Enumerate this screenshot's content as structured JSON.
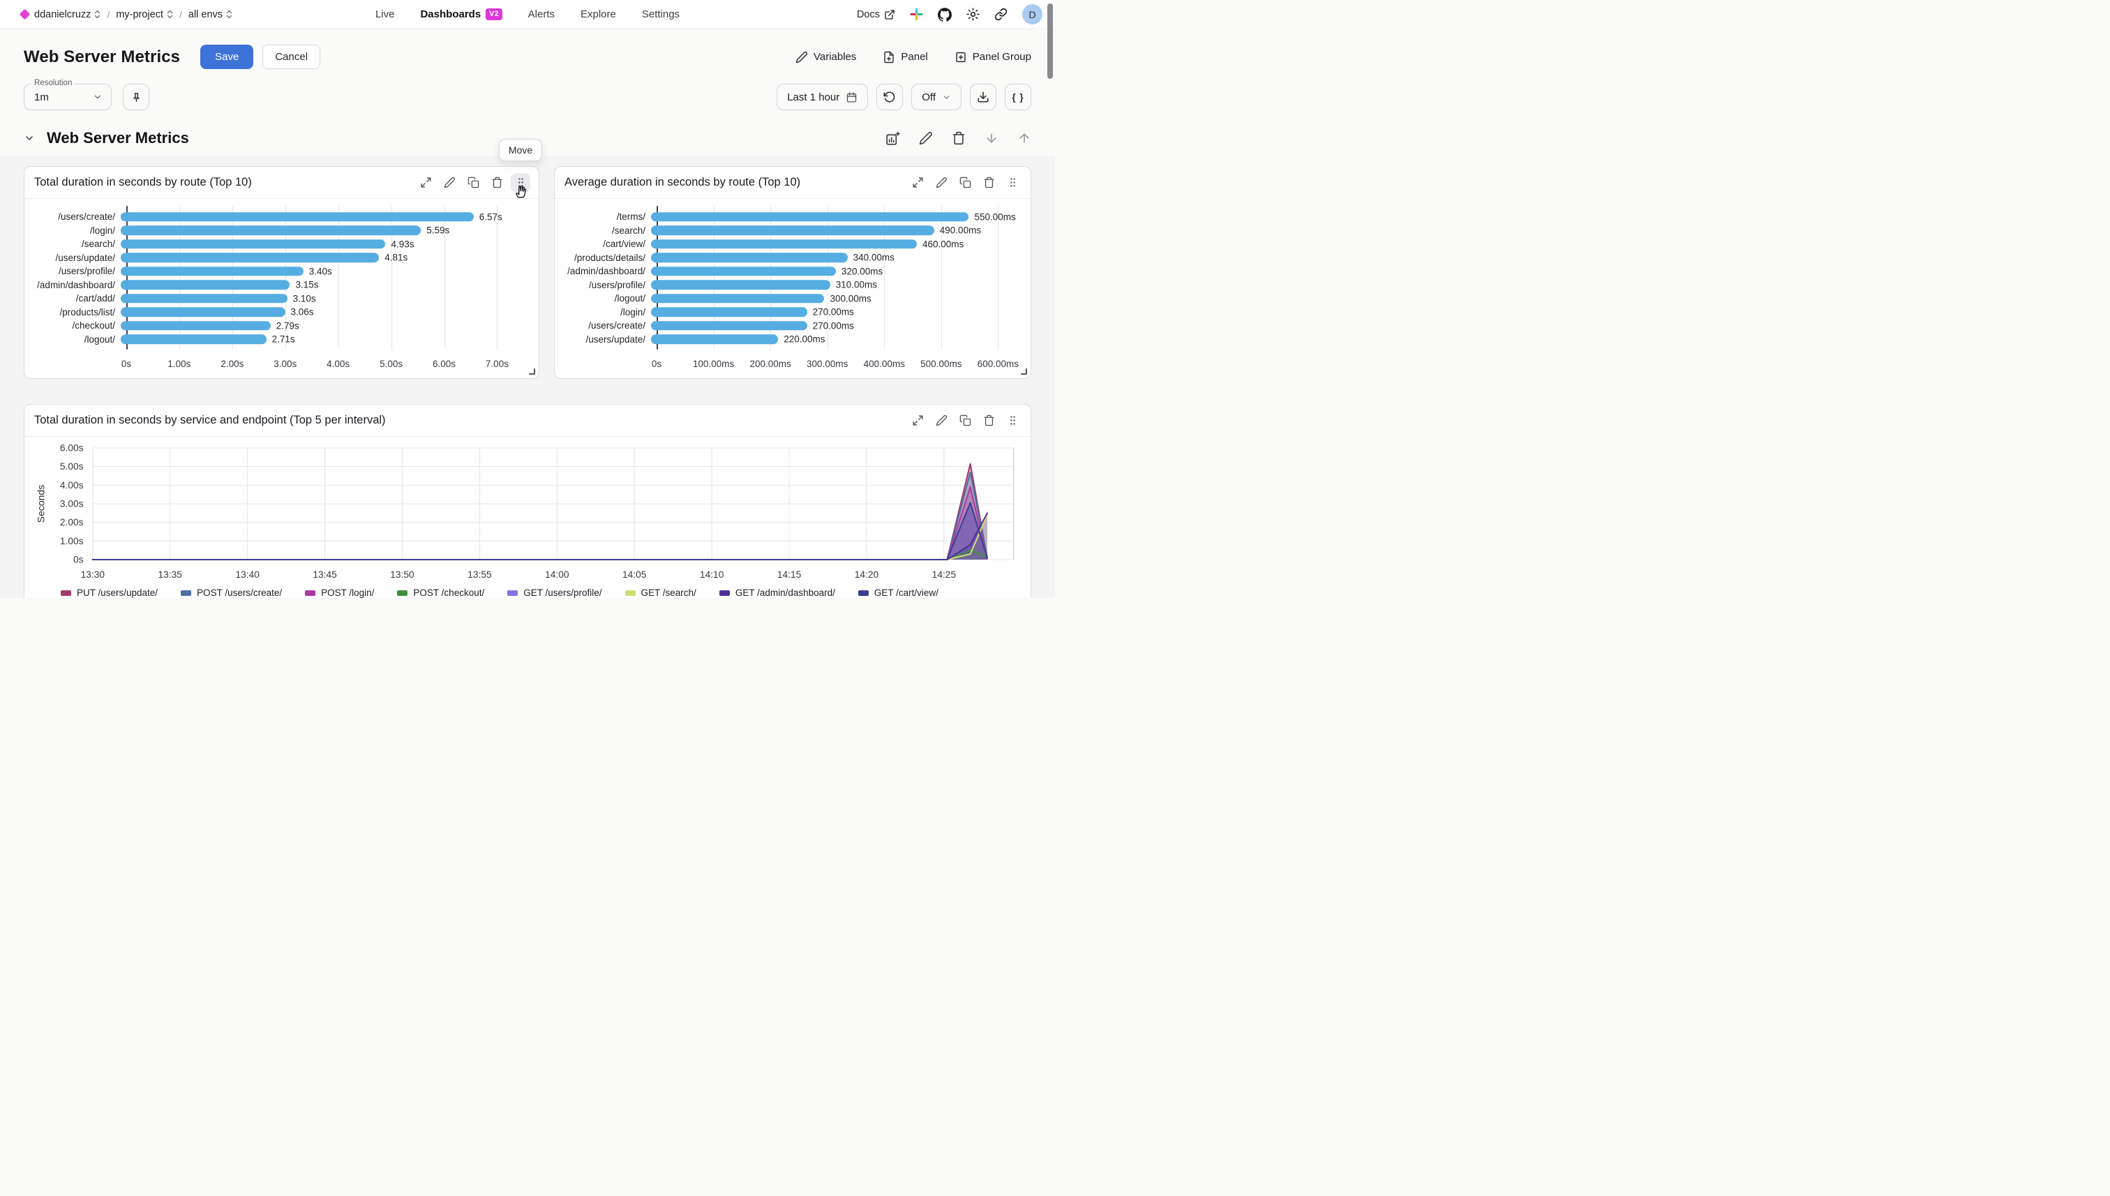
{
  "nav": {
    "breadcrumbs": [
      {
        "label": "ddanielcruzz"
      },
      {
        "label": "my-project"
      },
      {
        "label": "all envs"
      }
    ],
    "tabs": [
      {
        "label": "Live"
      },
      {
        "label": "Dashboards",
        "badge": "V2",
        "active": true
      },
      {
        "label": "Alerts"
      },
      {
        "label": "Explore"
      },
      {
        "label": "Settings"
      }
    ],
    "docs_label": "Docs",
    "avatar_initial": "D"
  },
  "header": {
    "title": "Web Server Metrics",
    "save_label": "Save",
    "cancel_label": "Cancel",
    "variables_label": "Variables",
    "panel_label": "Panel",
    "panel_group_label": "Panel Group"
  },
  "controls": {
    "resolution_label": "Resolution",
    "resolution_value": "1m",
    "time_range_label": "Last 1 hour",
    "auto_refresh_label": "Off",
    "braces_label": "{ }"
  },
  "section": {
    "title": "Web Server Metrics",
    "move_tooltip": "Move"
  },
  "colors": {
    "accent_blue": "#3D72D8",
    "bar_blue": "#55ADE2",
    "badge_magenta": "#DB36D8",
    "logo_magenta": "#E23FD3",
    "avatar_bg": "#A9CBF1"
  },
  "chart_data": [
    {
      "type": "bar",
      "orientation": "horizontal",
      "title": "Total duration in seconds by route (Top 10)",
      "bar_color": "#55ADE2",
      "categories": [
        "/users/create/",
        "/login/",
        "/search/",
        "/users/update/",
        "/users/profile/",
        "/admin/dashboard/",
        "/cart/add/",
        "/products/list/",
        "/checkout/",
        "/logout/"
      ],
      "values": [
        6.57,
        5.59,
        4.93,
        4.81,
        3.4,
        3.15,
        3.1,
        3.06,
        2.79,
        2.71
      ],
      "value_labels": [
        "6.57s",
        "5.59s",
        "4.93s",
        "4.81s",
        "3.40s",
        "3.15s",
        "3.10s",
        "3.06s",
        "2.79s",
        "2.71s"
      ],
      "x_max": 7.6,
      "x_ticks": [
        {
          "value": 0,
          "label": "0s"
        },
        {
          "value": 1,
          "label": "1.00s"
        },
        {
          "value": 2,
          "label": "2.00s"
        },
        {
          "value": 3,
          "label": "3.00s"
        },
        {
          "value": 4,
          "label": "4.00s"
        },
        {
          "value": 5,
          "label": "5.00s"
        },
        {
          "value": 6,
          "label": "6.00s"
        },
        {
          "value": 7,
          "label": "7.00s"
        }
      ]
    },
    {
      "type": "bar",
      "orientation": "horizontal",
      "title": "Average duration in seconds by route (Top 10)",
      "bar_color": "#55ADE2",
      "categories": [
        "/terms/",
        "/search/",
        "/cart/view/",
        "/products/details/",
        "/admin/dashboard/",
        "/users/profile/",
        "/logout/",
        "/login/",
        "/users/create/",
        "/users/update/"
      ],
      "values": [
        550,
        490,
        460,
        340,
        320,
        310,
        300,
        270,
        270,
        220
      ],
      "value_labels": [
        "550.00ms",
        "490.00ms",
        "460.00ms",
        "340.00ms",
        "320.00ms",
        "310.00ms",
        "300.00ms",
        "270.00ms",
        "270.00ms",
        "220.00ms"
      ],
      "x_max": 640,
      "x_ticks": [
        {
          "value": 0,
          "label": "0s"
        },
        {
          "value": 100,
          "label": "100.00ms"
        },
        {
          "value": 200,
          "label": "200.00ms"
        },
        {
          "value": 300,
          "label": "300.00ms"
        },
        {
          "value": 400,
          "label": "400.00ms"
        },
        {
          "value": 500,
          "label": "500.00ms"
        },
        {
          "value": 600,
          "label": "600.00ms"
        }
      ]
    },
    {
      "type": "area",
      "title": "Total duration in seconds by service and endpoint (Top 5 per interval)",
      "ylabel": "Seconds",
      "y_max": 6,
      "y_ticks": [
        {
          "value": 0,
          "label": "0s"
        },
        {
          "value": 1,
          "label": "1.00s"
        },
        {
          "value": 2,
          "label": "2.00s"
        },
        {
          "value": 3,
          "label": "3.00s"
        },
        {
          "value": 4,
          "label": "4.00s"
        },
        {
          "value": 5,
          "label": "5.00s"
        },
        {
          "value": 6,
          "label": "6.00s"
        }
      ],
      "x_domain_minutes": [
        0,
        59.5
      ],
      "x_ticks": [
        {
          "t": 0,
          "label": "13:30"
        },
        {
          "t": 5,
          "label": "13:35"
        },
        {
          "t": 10,
          "label": "13:40"
        },
        {
          "t": 15,
          "label": "13:45"
        },
        {
          "t": 20,
          "label": "13:50"
        },
        {
          "t": 25,
          "label": "13:55"
        },
        {
          "t": 30,
          "label": "14:00"
        },
        {
          "t": 35,
          "label": "14:05"
        },
        {
          "t": 40,
          "label": "14:10"
        },
        {
          "t": 45,
          "label": "14:15"
        },
        {
          "t": 50,
          "label": "14:20"
        },
        {
          "t": 55,
          "label": "14:25"
        }
      ],
      "series": [
        {
          "name": "PUT /users/update/",
          "color": "#A13A6D",
          "points": [
            [
              0,
              0
            ],
            [
              55.2,
              0
            ],
            [
              56.7,
              5.15
            ],
            [
              57.8,
              0.05
            ]
          ]
        },
        {
          "name": "POST /users/create/",
          "color": "#4E6FA3",
          "points": [
            [
              0,
              0
            ],
            [
              55.2,
              0
            ],
            [
              56.7,
              4.7
            ],
            [
              57.8,
              0.1
            ]
          ]
        },
        {
          "name": "POST /login/",
          "color": "#AA3AA0",
          "points": [
            [
              0,
              0
            ],
            [
              55.2,
              0
            ],
            [
              56.7,
              3.9
            ],
            [
              57.8,
              0.05
            ]
          ]
        },
        {
          "name": "POST /checkout/",
          "color": "#41903F",
          "points": [
            [
              0,
              0
            ],
            [
              55.2,
              0
            ],
            [
              56.7,
              0.5
            ],
            [
              57.8,
              0.15
            ]
          ]
        },
        {
          "name": "GET /users/profile/",
          "color": "#8673DE",
          "points": [
            [
              0,
              0
            ],
            [
              55.2,
              0
            ],
            [
              56.7,
              3.0
            ],
            [
              57.8,
              0.1
            ]
          ]
        },
        {
          "name": "GET /search/",
          "color": "#CEDF70",
          "points": [
            [
              0,
              0
            ],
            [
              55.2,
              0
            ],
            [
              56.7,
              0.3
            ],
            [
              57.8,
              2.4
            ]
          ]
        },
        {
          "name": "GET /admin/dashboard/",
          "color": "#4D2F9E",
          "points": [
            [
              0,
              0
            ],
            [
              55.2,
              0
            ],
            [
              56.7,
              0.8
            ],
            [
              57.8,
              2.5
            ]
          ]
        },
        {
          "name": "GET /cart/view/",
          "color": "#3C3C96",
          "points": [
            [
              0,
              0
            ],
            [
              55.2,
              0
            ],
            [
              56.7,
              3.05
            ],
            [
              57.8,
              0.1
            ]
          ]
        }
      ]
    }
  ]
}
